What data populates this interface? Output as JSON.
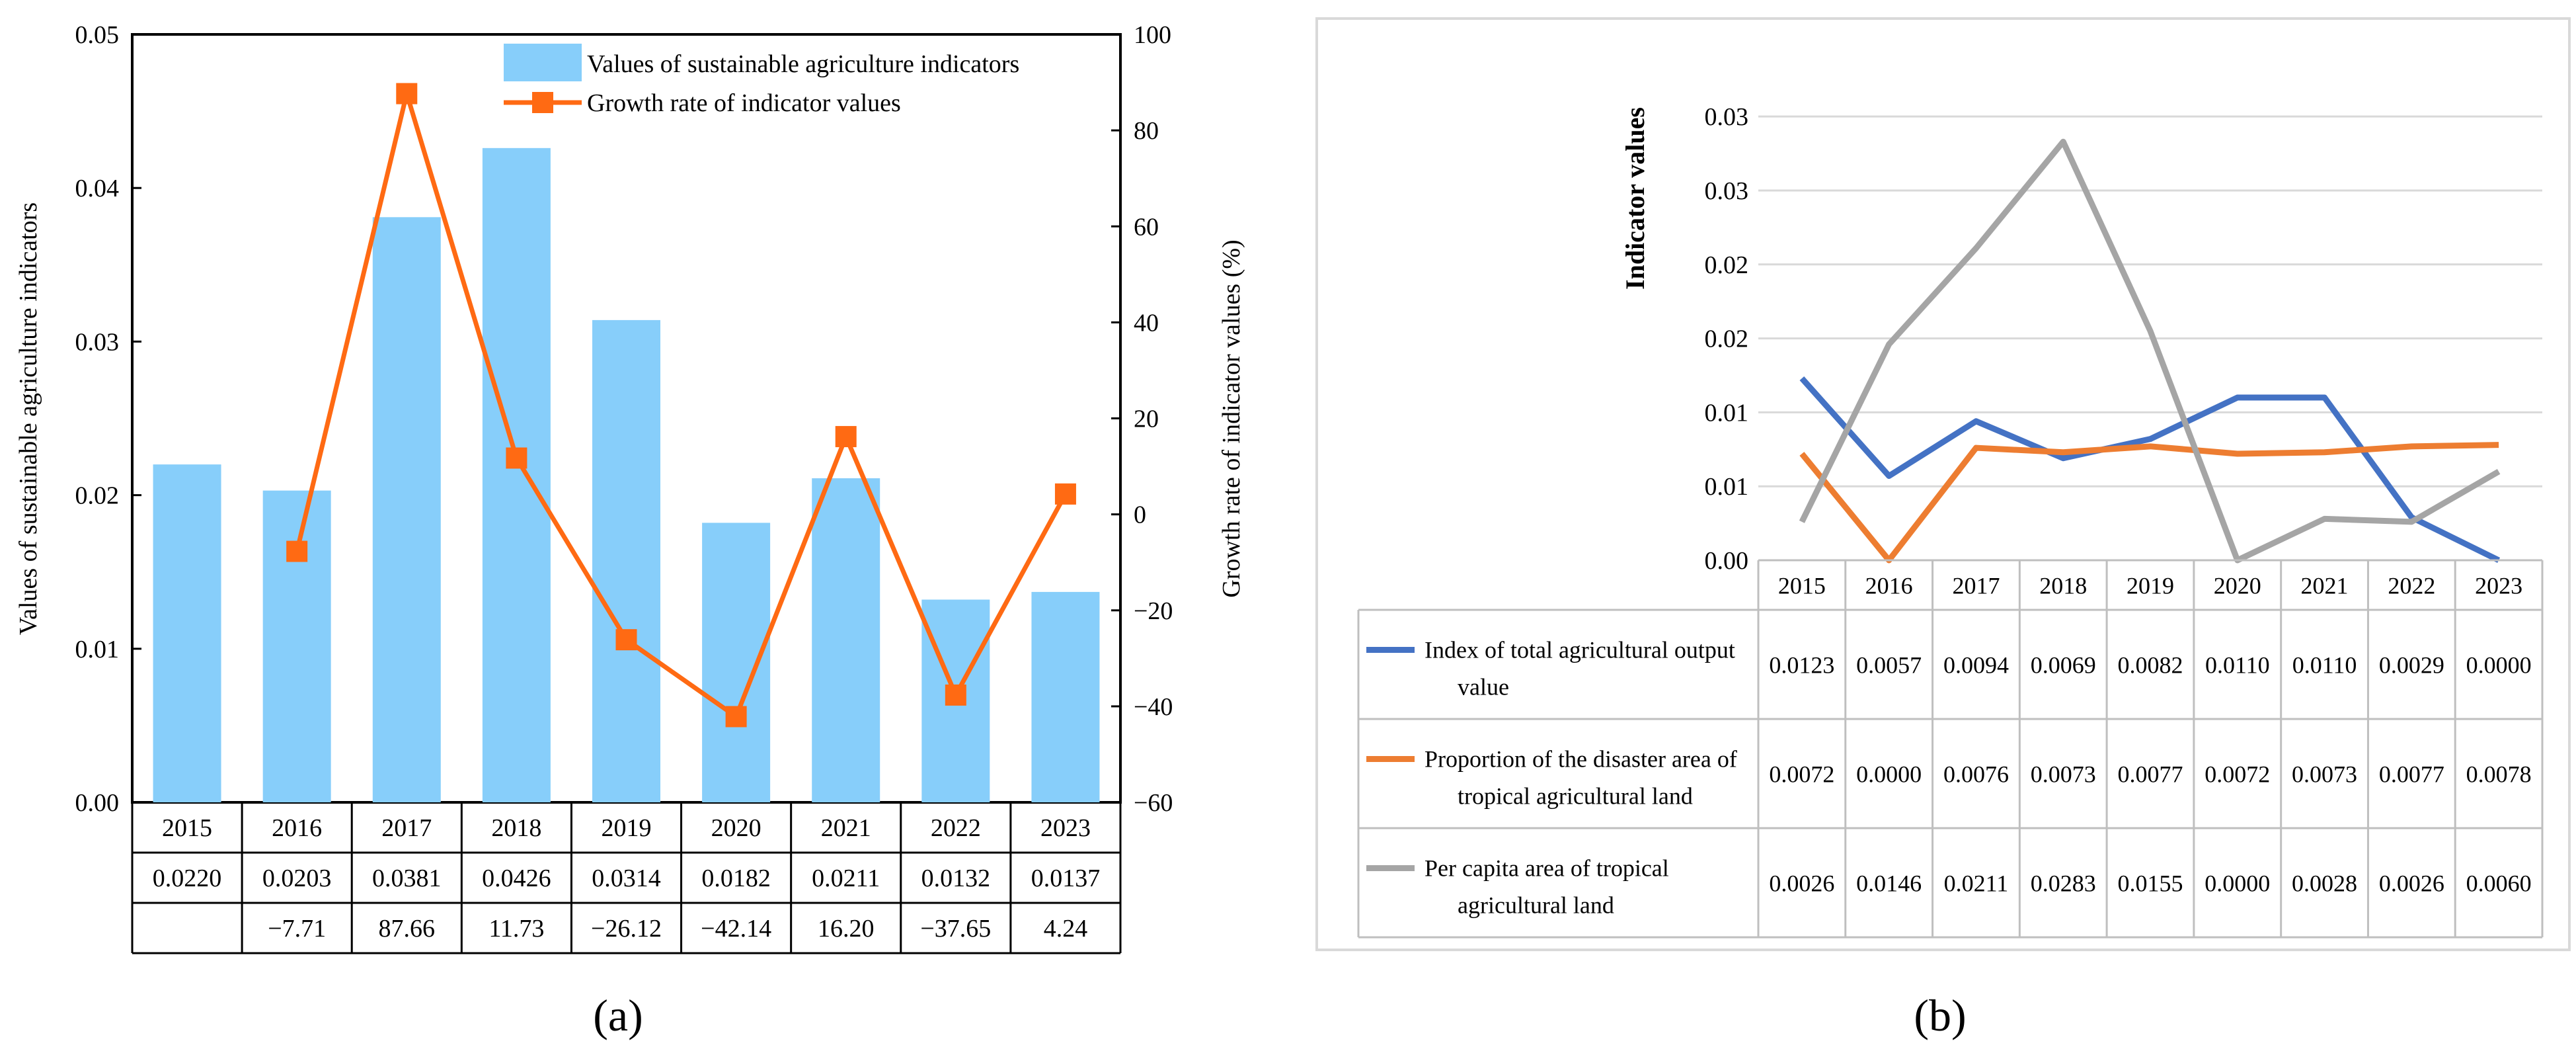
{
  "chart_data": [
    {
      "panel_label": "(a)",
      "type": "bar+line",
      "categories": [
        "2015",
        "2016",
        "2017",
        "2018",
        "2019",
        "2020",
        "2021",
        "2022",
        "2023"
      ],
      "ylabel_left": "Values of sustainable agriculture indicators",
      "ylabel_right": "Growth rate of indicator values (%)",
      "ylim_left": [
        0,
        0.05
      ],
      "ylim_right": [
        -60,
        100
      ],
      "left_ticks": [
        "0.00",
        "0.01",
        "0.02",
        "0.03",
        "0.04",
        "0.05"
      ],
      "right_ticks": [
        "−60",
        "−40",
        "−20",
        "0",
        "20",
        "40",
        "60",
        "80",
        "100"
      ],
      "legend": {
        "bar": "Values of sustainable agriculture indicators",
        "line": "Growth rate of indicator values"
      },
      "series": [
        {
          "name": "Values of sustainable agriculture indicators",
          "kind": "bar",
          "color": "#87cefa",
          "values": [
            0.022,
            0.0203,
            0.0381,
            0.0426,
            0.0314,
            0.0182,
            0.0211,
            0.0132,
            0.0137
          ]
        },
        {
          "name": "Growth rate of indicator values",
          "kind": "line",
          "color": "#ff6a13",
          "values": [
            null,
            -7.71,
            87.66,
            11.73,
            -26.12,
            -42.14,
            16.2,
            -37.65,
            4.24
          ]
        }
      ],
      "table_rows": [
        [
          "0.0220",
          "0.0203",
          "0.0381",
          "0.0426",
          "0.0314",
          "0.0182",
          "0.0211",
          "0.0132",
          "0.0137"
        ],
        [
          "",
          "−7.71",
          "87.66",
          "11.73",
          "−26.12",
          "−42.14",
          "16.20",
          "−37.65",
          "4.24"
        ]
      ]
    },
    {
      "panel_label": "(b)",
      "type": "line",
      "categories": [
        "2015",
        "2016",
        "2017",
        "2018",
        "2019",
        "2020",
        "2021",
        "2022",
        "2023"
      ],
      "ylabel": "Indicator values",
      "ylim": [
        0,
        0.0305
      ],
      "tick_values": [
        0,
        0.005,
        0.01,
        0.015,
        0.02,
        0.025,
        0.03
      ],
      "tick_labels": [
        "0.00",
        "0.01",
        "0.01",
        "0.02",
        "0.02",
        "0.03",
        "0.03"
      ],
      "grid": true,
      "series": [
        {
          "name": "Index of total agricultural output value",
          "label_lines": [
            "Index of total agricultural output",
            "value"
          ],
          "color": "#4472c4",
          "values": [
            0.0123,
            0.0057,
            0.0094,
            0.0069,
            0.0082,
            0.011,
            0.011,
            0.0029,
            0.0
          ],
          "labels": [
            "0.0123",
            "0.0057",
            "0.0094",
            "0.0069",
            "0.0082",
            "0.0110",
            "0.0110",
            "0.0029",
            "0.0000"
          ]
        },
        {
          "name": "Proportion of the disaster area of tropical agricultural land",
          "label_lines": [
            "Proportion of the disaster area of",
            "tropical agricultural land"
          ],
          "color": "#ed7d31",
          "values": [
            0.0072,
            0.0,
            0.0076,
            0.0073,
            0.0077,
            0.0072,
            0.0073,
            0.0077,
            0.0078
          ],
          "labels": [
            "0.0072",
            "0.0000",
            "0.0076",
            "0.0073",
            "0.0077",
            "0.0072",
            "0.0073",
            "0.0077",
            "0.0078"
          ]
        },
        {
          "name": "Per capita area of tropical agricultural land",
          "label_lines": [
            "Per capita area of tropical",
            "agricultural land"
          ],
          "color": "#a5a5a5",
          "values": [
            0.0026,
            0.0146,
            0.0211,
            0.0283,
            0.0155,
            0.0,
            0.0028,
            0.0026,
            0.006
          ],
          "labels": [
            "0.0026",
            "0.0146",
            "0.0211",
            "0.0283",
            "0.0155",
            "0.0000",
            "0.0028",
            "0.0026",
            "0.0060"
          ]
        }
      ]
    }
  ]
}
